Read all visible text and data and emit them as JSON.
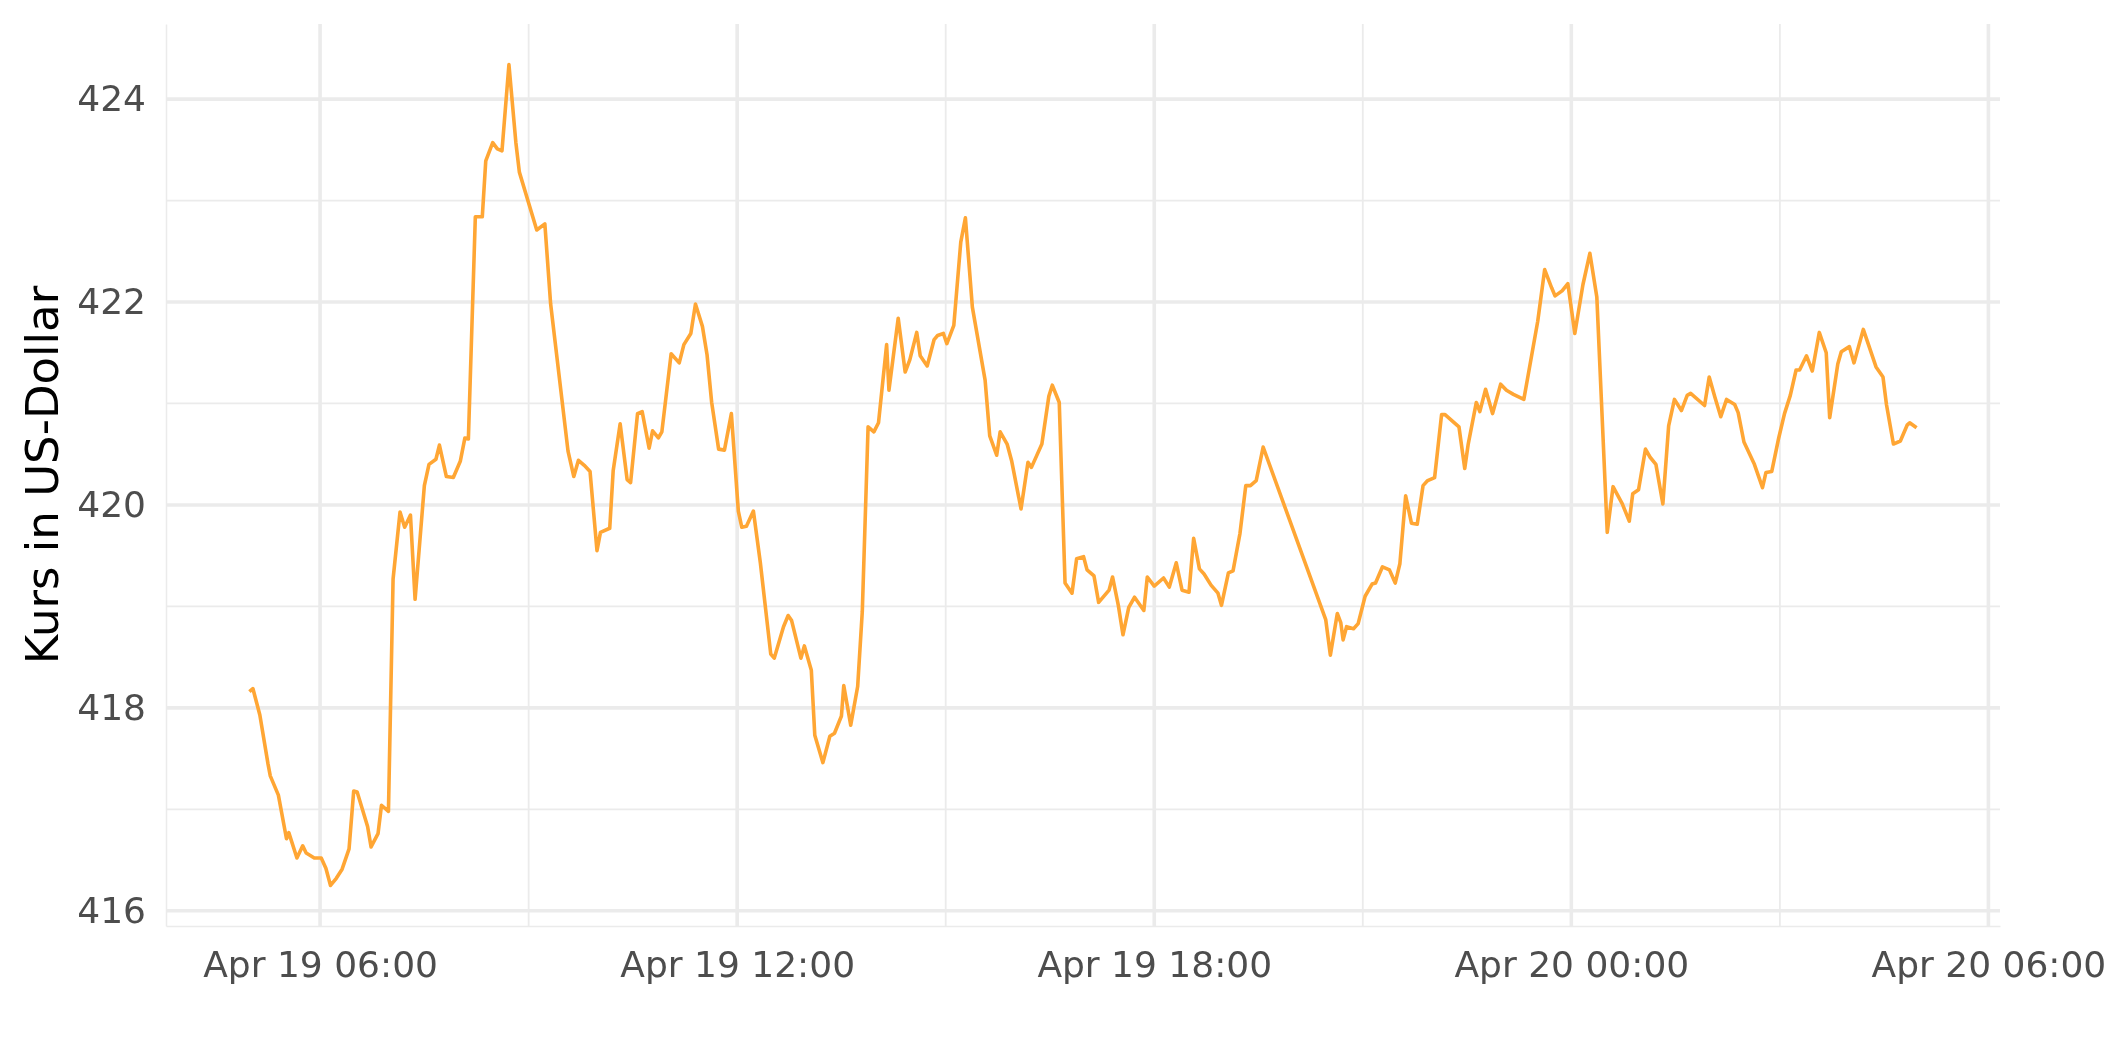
{
  "chart_data": {
    "type": "line",
    "ylabel": "Kurs in US-Dollar",
    "x": [
      "--04-19T04:59",
      "--04-19T05:02",
      "--04-19T05:08",
      "--04-19T05:15",
      "--04-19T05:17",
      "--04-19T05:24",
      "--04-19T05:31",
      "--04-19T05:33",
      "--04-19T05:40",
      "--04-19T05:45",
      "--04-19T05:48",
      "--04-19T05:55",
      "--04-19T06:01",
      "--04-19T06:05",
      "--04-19T06:09",
      "--04-19T06:14",
      "--04-19T06:19",
      "--04-19T06:25",
      "--04-19T06:29",
      "--04-19T06:32",
      "--04-19T06:41",
      "--04-19T06:44",
      "--04-19T06:50",
      "--04-19T06:53",
      "--04-19T06:59",
      "--04-19T07:03",
      "--04-19T07:09",
      "--04-19T07:13",
      "--04-19T07:18",
      "--04-19T07:22",
      "--04-19T07:30",
      "--04-19T07:34",
      "--04-19T07:40",
      "--04-19T07:43",
      "--04-19T07:49",
      "--04-19T07:55",
      "--04-19T08:01",
      "--04-19T08:05",
      "--04-19T08:08",
      "--04-19T08:14",
      "--04-19T08:20",
      "--04-19T08:23",
      "--04-19T08:29",
      "--04-19T08:33",
      "--04-19T08:37",
      "--04-19T08:43",
      "--04-19T08:49",
      "--04-19T08:52",
      "--04-19T09:07",
      "--04-19T09:14",
      "--04-19T09:19",
      "--04-19T09:34",
      "--04-19T09:39",
      "--04-19T09:43",
      "--04-19T09:48",
      "--04-19T09:53",
      "--04-19T09:59",
      "--04-19T10:02",
      "--04-19T10:10",
      "--04-19T10:13",
      "--04-19T10:19",
      "--04-19T10:25",
      "--04-19T10:28",
      "--04-19T10:34",
      "--04-19T10:38",
      "--04-19T10:44",
      "--04-19T10:47",
      "--04-19T10:52",
      "--04-19T10:55",
      "--04-19T11:03",
      "--04-19T11:10",
      "--04-19T11:14",
      "--04-19T11:20",
      "--04-19T11:24",
      "--04-19T11:30",
      "--04-19T11:34",
      "--04-19T11:38",
      "--04-19T11:44",
      "--04-19T11:49",
      "--04-19T11:55",
      "--04-19T12:01",
      "--04-19T12:04",
      "--04-19T12:08",
      "--04-19T12:14",
      "--04-19T12:20",
      "--04-19T12:29",
      "--04-19T12:32",
      "--04-19T12:40",
      "--04-19T12:44",
      "--04-19T12:47",
      "--04-19T12:55",
      "--04-19T12:58",
      "--04-19T13:04",
      "--04-19T13:07",
      "--04-19T13:14",
      "--04-19T13:20",
      "--04-19T13:24",
      "--04-19T13:30",
      "--04-19T13:32",
      "--04-19T13:38",
      "--04-19T13:44",
      "--04-19T13:48",
      "--04-19T13:53",
      "--04-19T13:58",
      "--04-19T14:02",
      "--04-19T14:09",
      "--04-19T14:11",
      "--04-19T14:19",
      "--04-19T14:25",
      "--04-19T14:29",
      "--04-19T14:35",
      "--04-19T14:38",
      "--04-19T14:44",
      "--04-19T14:50",
      "--04-19T14:53",
      "--04-19T14:58",
      "--04-19T15:01",
      "--04-19T15:07",
      "--04-19T15:13",
      "--04-19T15:17",
      "--04-19T15:23",
      "--04-19T15:34",
      "--04-19T15:38",
      "--04-19T15:44",
      "--04-19T15:47",
      "--04-19T15:53",
      "--04-19T15:57",
      "--04-19T16:05",
      "--04-19T16:11",
      "--04-19T16:14",
      "--04-19T16:23",
      "--04-19T16:29",
      "--04-19T16:32",
      "--04-19T16:38",
      "--04-19T16:43",
      "--04-19T16:49",
      "--04-19T16:53",
      "--04-19T16:59",
      "--04-19T17:02",
      "--04-19T17:08",
      "--04-19T17:12",
      "--04-19T17:21",
      "--04-19T17:24",
      "--04-19T17:29",
      "--04-19T17:33",
      "--04-19T17:38",
      "--04-19T17:43",
      "--04-19T17:51",
      "--04-19T17:54",
      "--04-19T18:00",
      "--04-19T18:08",
      "--04-19T18:13",
      "--04-19T18:19",
      "--04-19T18:24",
      "--04-19T18:30",
      "--04-19T18:34",
      "--04-19T18:39",
      "--04-19T18:43",
      "--04-19T18:49",
      "--04-19T18:55",
      "--04-19T18:58",
      "--04-19T19:04",
      "--04-19T19:08",
      "--04-19T19:14",
      "--04-19T19:19",
      "--04-19T19:23",
      "--04-19T19:28",
      "--04-19T19:34",
      "--04-19T20:28",
      "--04-19T20:32",
      "--04-19T20:38",
      "--04-19T20:41",
      "--04-19T20:43",
      "--04-19T20:46",
      "--04-19T20:52",
      "--04-19T20:56",
      "--04-19T21:02",
      "--04-19T21:08",
      "--04-19T21:11",
      "--04-19T21:17",
      "--04-19T21:23",
      "--04-19T21:28",
      "--04-19T21:32",
      "--04-19T21:37",
      "--04-19T21:42",
      "--04-19T21:47",
      "--04-19T21:52",
      "--04-19T21:56",
      "--04-19T22:02",
      "--04-19T22:08",
      "--04-19T22:11",
      "--04-19T22:23",
      "--04-19T22:28",
      "--04-19T22:31",
      "--04-19T22:38",
      "--04-19T22:41",
      "--04-19T22:46",
      "--04-19T22:52",
      "--04-19T22:59",
      "--04-19T23:04",
      "--04-19T23:10",
      "--04-19T23:19",
      "--04-19T23:31",
      "--04-19T23:37",
      "--04-19T23:43",
      "--04-19T23:46",
      "--04-19T23:52",
      "--04-19T23:57",
      "--04-20T00:03",
      "--04-20T00:10",
      "--04-20T00:16",
      "--04-20T00:22",
      "--04-20T00:31",
      "--04-20T00:36",
      "--04-20T00:44",
      "--04-20T00:50",
      "--04-20T00:53",
      "--04-20T00:58",
      "--04-20T01:04",
      "--04-20T01:08",
      "--04-20T01:13",
      "--04-20T01:19",
      "--04-20T01:24",
      "--04-20T01:29",
      "--04-20T01:35",
      "--04-20T01:40",
      "--04-20T01:43",
      "--04-20T01:55",
      "--04-20T01:59",
      "--04-20T02:04",
      "--04-20T02:09",
      "--04-20T02:14",
      "--04-20T02:21",
      "--04-20T02:24",
      "--04-20T02:29",
      "--04-20T02:38",
      "--04-20T02:45",
      "--04-20T02:48",
      "--04-20T02:53",
      "--04-20T02:59",
      "--04-20T03:04",
      "--04-20T03:09",
      "--04-20T03:14",
      "--04-20T03:17",
      "--04-20T03:23",
      "--04-20T03:28",
      "--04-20T03:34",
      "--04-20T03:40",
      "--04-20T03:43",
      "--04-20T03:50",
      "--04-20T03:53",
      "--04-20T04:00",
      "--04-20T04:04",
      "--04-20T04:12",
      "--04-20T04:23",
      "--04-20T04:29",
      "--04-20T04:32",
      "--04-20T04:38",
      "--04-20T04:44",
      "--04-20T04:50",
      "--04-20T04:52",
      "--04-20T04:58"
    ],
    "values": [
      418.16,
      418.19,
      417.93,
      417.45,
      417.33,
      417.14,
      416.71,
      416.77,
      416.52,
      416.64,
      416.57,
      416.52,
      416.52,
      416.42,
      416.25,
      416.32,
      416.41,
      416.61,
      417.18,
      417.17,
      416.83,
      416.63,
      416.76,
      417.04,
      416.98,
      419.27,
      419.93,
      419.78,
      419.9,
      419.07,
      420.19,
      420.4,
      420.45,
      420.59,
      420.28,
      420.27,
      420.43,
      420.66,
      420.65,
      422.84,
      422.84,
      423.39,
      423.57,
      423.51,
      423.49,
      424.34,
      423.57,
      423.28,
      422.71,
      422.77,
      421.98,
      420.53,
      420.28,
      420.44,
      420.39,
      420.33,
      419.55,
      419.73,
      419.77,
      420.34,
      420.8,
      420.25,
      420.22,
      420.9,
      420.92,
      420.56,
      420.73,
      420.66,
      420.72,
      421.49,
      421.4,
      421.58,
      421.69,
      421.98,
      421.76,
      421.48,
      421.01,
      420.55,
      420.54,
      420.9,
      419.94,
      419.78,
      419.79,
      419.94,
      419.43,
      418.53,
      418.49,
      418.8,
      418.91,
      418.86,
      418.49,
      418.61,
      418.37,
      417.73,
      417.46,
      417.72,
      417.75,
      417.92,
      418.22,
      417.83,
      418.21,
      418.95,
      420.77,
      420.72,
      420.81,
      421.58,
      421.13,
      421.84,
      421.31,
      421.43,
      421.7,
      421.47,
      421.37,
      421.63,
      421.67,
      421.69,
      421.59,
      421.77,
      422.59,
      422.83,
      421.95,
      421.23,
      420.68,
      420.49,
      420.72,
      420.6,
      420.43,
      419.96,
      420.42,
      420.37,
      420.6,
      421.07,
      421.18,
      421.01,
      419.23,
      419.13,
      419.47,
      419.49,
      419.36,
      419.3,
      419.04,
      419.16,
      419.29,
      419.01,
      418.72,
      418.99,
      419.09,
      418.96,
      419.29,
      419.2,
      419.28,
      419.19,
      419.43,
      419.16,
      419.14,
      419.67,
      419.37,
      419.32,
      419.21,
      419.13,
      419.01,
      419.33,
      419.35,
      419.72,
      420.19,
      420.19,
      420.24,
      420.57,
      418.87,
      418.52,
      418.93,
      418.84,
      418.67,
      418.8,
      418.78,
      418.83,
      419.1,
      419.22,
      419.23,
      419.39,
      419.36,
      419.23,
      419.42,
      420.09,
      419.82,
      419.81,
      420.19,
      420.24,
      420.27,
      420.89,
      420.89,
      420.77,
      420.36,
      420.6,
      421.01,
      420.92,
      421.14,
      420.9,
      421.19,
      421.13,
      421.09,
      421.04,
      421.81,
      422.32,
      422.14,
      422.06,
      422.11,
      422.18,
      421.69,
      422.17,
      422.48,
      422.05,
      419.73,
      420.18,
      420.01,
      419.84,
      420.11,
      420.15,
      420.55,
      420.47,
      420.4,
      420.01,
      420.78,
      421.04,
      420.93,
      421.08,
      421.1,
      420.98,
      421.26,
      421.06,
      420.87,
      421.04,
      420.99,
      420.91,
      420.62,
      420.4,
      420.17,
      420.32,
      420.33,
      420.66,
      420.9,
      421.08,
      421.33,
      421.33,
      421.47,
      421.32,
      421.7,
      421.5,
      420.86,
      421.39,
      421.51,
      421.56,
      421.4,
      421.73,
      421.36,
      421.26,
      420.99,
      420.6,
      420.63,
      420.79,
      420.81,
      420.76
    ],
    "color": "#ffa634",
    "xlim": [
      "--04-19T03:47",
      "--04-20T06:10"
    ],
    "ylim": [
      415.85,
      424.74
    ],
    "xticks": [
      {
        "value": "--04-19T06:00",
        "label": "Apr 19 06:00"
      },
      {
        "value": "--04-19T09:00",
        "label": null
      },
      {
        "value": "--04-19T12:00",
        "label": "Apr 19 12:00"
      },
      {
        "value": "--04-19T15:00",
        "label": null
      },
      {
        "value": "--04-19T18:00",
        "label": "Apr 19 18:00"
      },
      {
        "value": "--04-19T21:00",
        "label": null
      },
      {
        "value": "--04-20T00:00",
        "label": "Apr 20 00:00"
      },
      {
        "value": "--04-20T03:00",
        "label": null
      },
      {
        "value": "--04-20T06:00",
        "label": "Apr 20 06:00"
      }
    ],
    "yticks": [
      416,
      {
        "value": 417,
        "label": null
      },
      418,
      {
        "value": 419,
        "label": null
      },
      420,
      {
        "value": 421,
        "label": null
      },
      422,
      {
        "value": 423,
        "label": null
      },
      424
    ],
    "grid": true
  }
}
